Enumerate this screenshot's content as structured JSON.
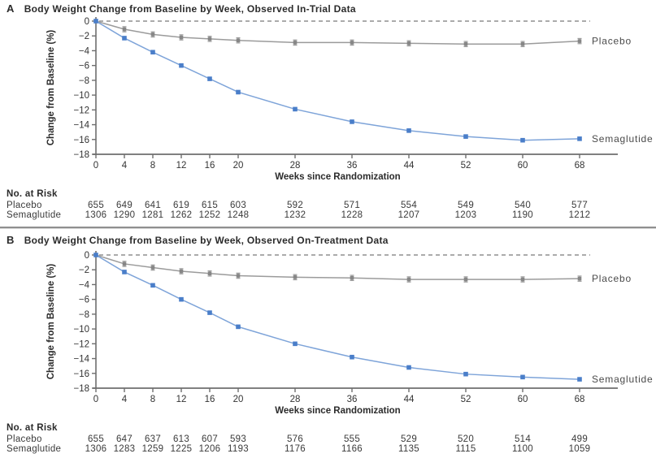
{
  "chart_data": [
    {
      "panel_label": "A",
      "title": "Body Weight Change from Baseline by Week, Observed In-Trial Data",
      "type": "line",
      "x": [
        0,
        4,
        8,
        12,
        16,
        20,
        28,
        36,
        44,
        52,
        60,
        68
      ],
      "xlabel": "Weeks since Randomization",
      "ylabel": "Change from Baseline (%)",
      "ylim": [
        -18,
        0
      ],
      "yticks": [
        0,
        -2,
        -4,
        -6,
        -8,
        -10,
        -12,
        -14,
        -16,
        -18
      ],
      "zero_reference_line": "dashed",
      "legend_position": "right-of-last-point",
      "grid": false,
      "series": [
        {
          "name": "Placebo",
          "color": "#9b9b9b",
          "marker_color": "#868686",
          "error_bar": 0.35,
          "values": [
            0,
            -1.1,
            -1.8,
            -2.2,
            -2.4,
            -2.6,
            -2.9,
            -2.9,
            -3.0,
            -3.1,
            -3.1,
            -2.7
          ]
        },
        {
          "name": "Semaglutide",
          "color": "#7ea4d9",
          "marker_color": "#4a7ec9",
          "error_bar": 0.2,
          "values": [
            0,
            -2.3,
            -4.2,
            -6.0,
            -7.8,
            -9.6,
            -11.9,
            -13.6,
            -14.8,
            -15.6,
            -16.1,
            -15.9
          ]
        }
      ],
      "no_at_risk": {
        "header": "No. at Risk",
        "rows": [
          {
            "label": "Placebo",
            "values": [
              655,
              649,
              641,
              619,
              615,
              603,
              592,
              571,
              554,
              549,
              540,
              577
            ]
          },
          {
            "label": "Semaglutide",
            "values": [
              1306,
              1290,
              1281,
              1262,
              1252,
              1248,
              1232,
              1228,
              1207,
              1203,
              1190,
              1212
            ]
          }
        ]
      }
    },
    {
      "panel_label": "B",
      "title": "Body Weight Change from Baseline by Week, Observed On-Treatment Data",
      "type": "line",
      "x": [
        0,
        4,
        8,
        12,
        16,
        20,
        28,
        36,
        44,
        52,
        60,
        68
      ],
      "xlabel": "Weeks since Randomization",
      "ylabel": "Change from Baseline (%)",
      "ylim": [
        -18,
        0
      ],
      "yticks": [
        0,
        -2,
        -4,
        -6,
        -8,
        -10,
        -12,
        -14,
        -16,
        -18
      ],
      "zero_reference_line": "dashed",
      "legend_position": "right-of-last-point",
      "grid": false,
      "series": [
        {
          "name": "Placebo",
          "color": "#9b9b9b",
          "marker_color": "#868686",
          "error_bar": 0.35,
          "values": [
            0,
            -1.2,
            -1.7,
            -2.2,
            -2.5,
            -2.8,
            -3.0,
            -3.1,
            -3.3,
            -3.3,
            -3.3,
            -3.2
          ]
        },
        {
          "name": "Semaglutide",
          "color": "#7ea4d9",
          "marker_color": "#4a7ec9",
          "error_bar": 0.2,
          "values": [
            0,
            -2.3,
            -4.1,
            -6.0,
            -7.8,
            -9.7,
            -12.0,
            -13.8,
            -15.2,
            -16.1,
            -16.5,
            -16.8
          ]
        }
      ],
      "no_at_risk": {
        "header": "No. at Risk",
        "rows": [
          {
            "label": "Placebo",
            "values": [
              655,
              647,
              637,
              613,
              607,
              593,
              576,
              555,
              529,
              520,
              514,
              499
            ]
          },
          {
            "label": "Semaglutide",
            "values": [
              1306,
              1283,
              1259,
              1225,
              1206,
              1193,
              1176,
              1166,
              1135,
              1115,
              1100,
              1059
            ]
          }
        ]
      }
    }
  ],
  "colors": {
    "placebo": "#9b9b9b",
    "semaglutide": "#4a7ec9",
    "axis": "#6e6e6e",
    "text": "#2b2b2b",
    "zero_line": "#8f8f8f"
  }
}
